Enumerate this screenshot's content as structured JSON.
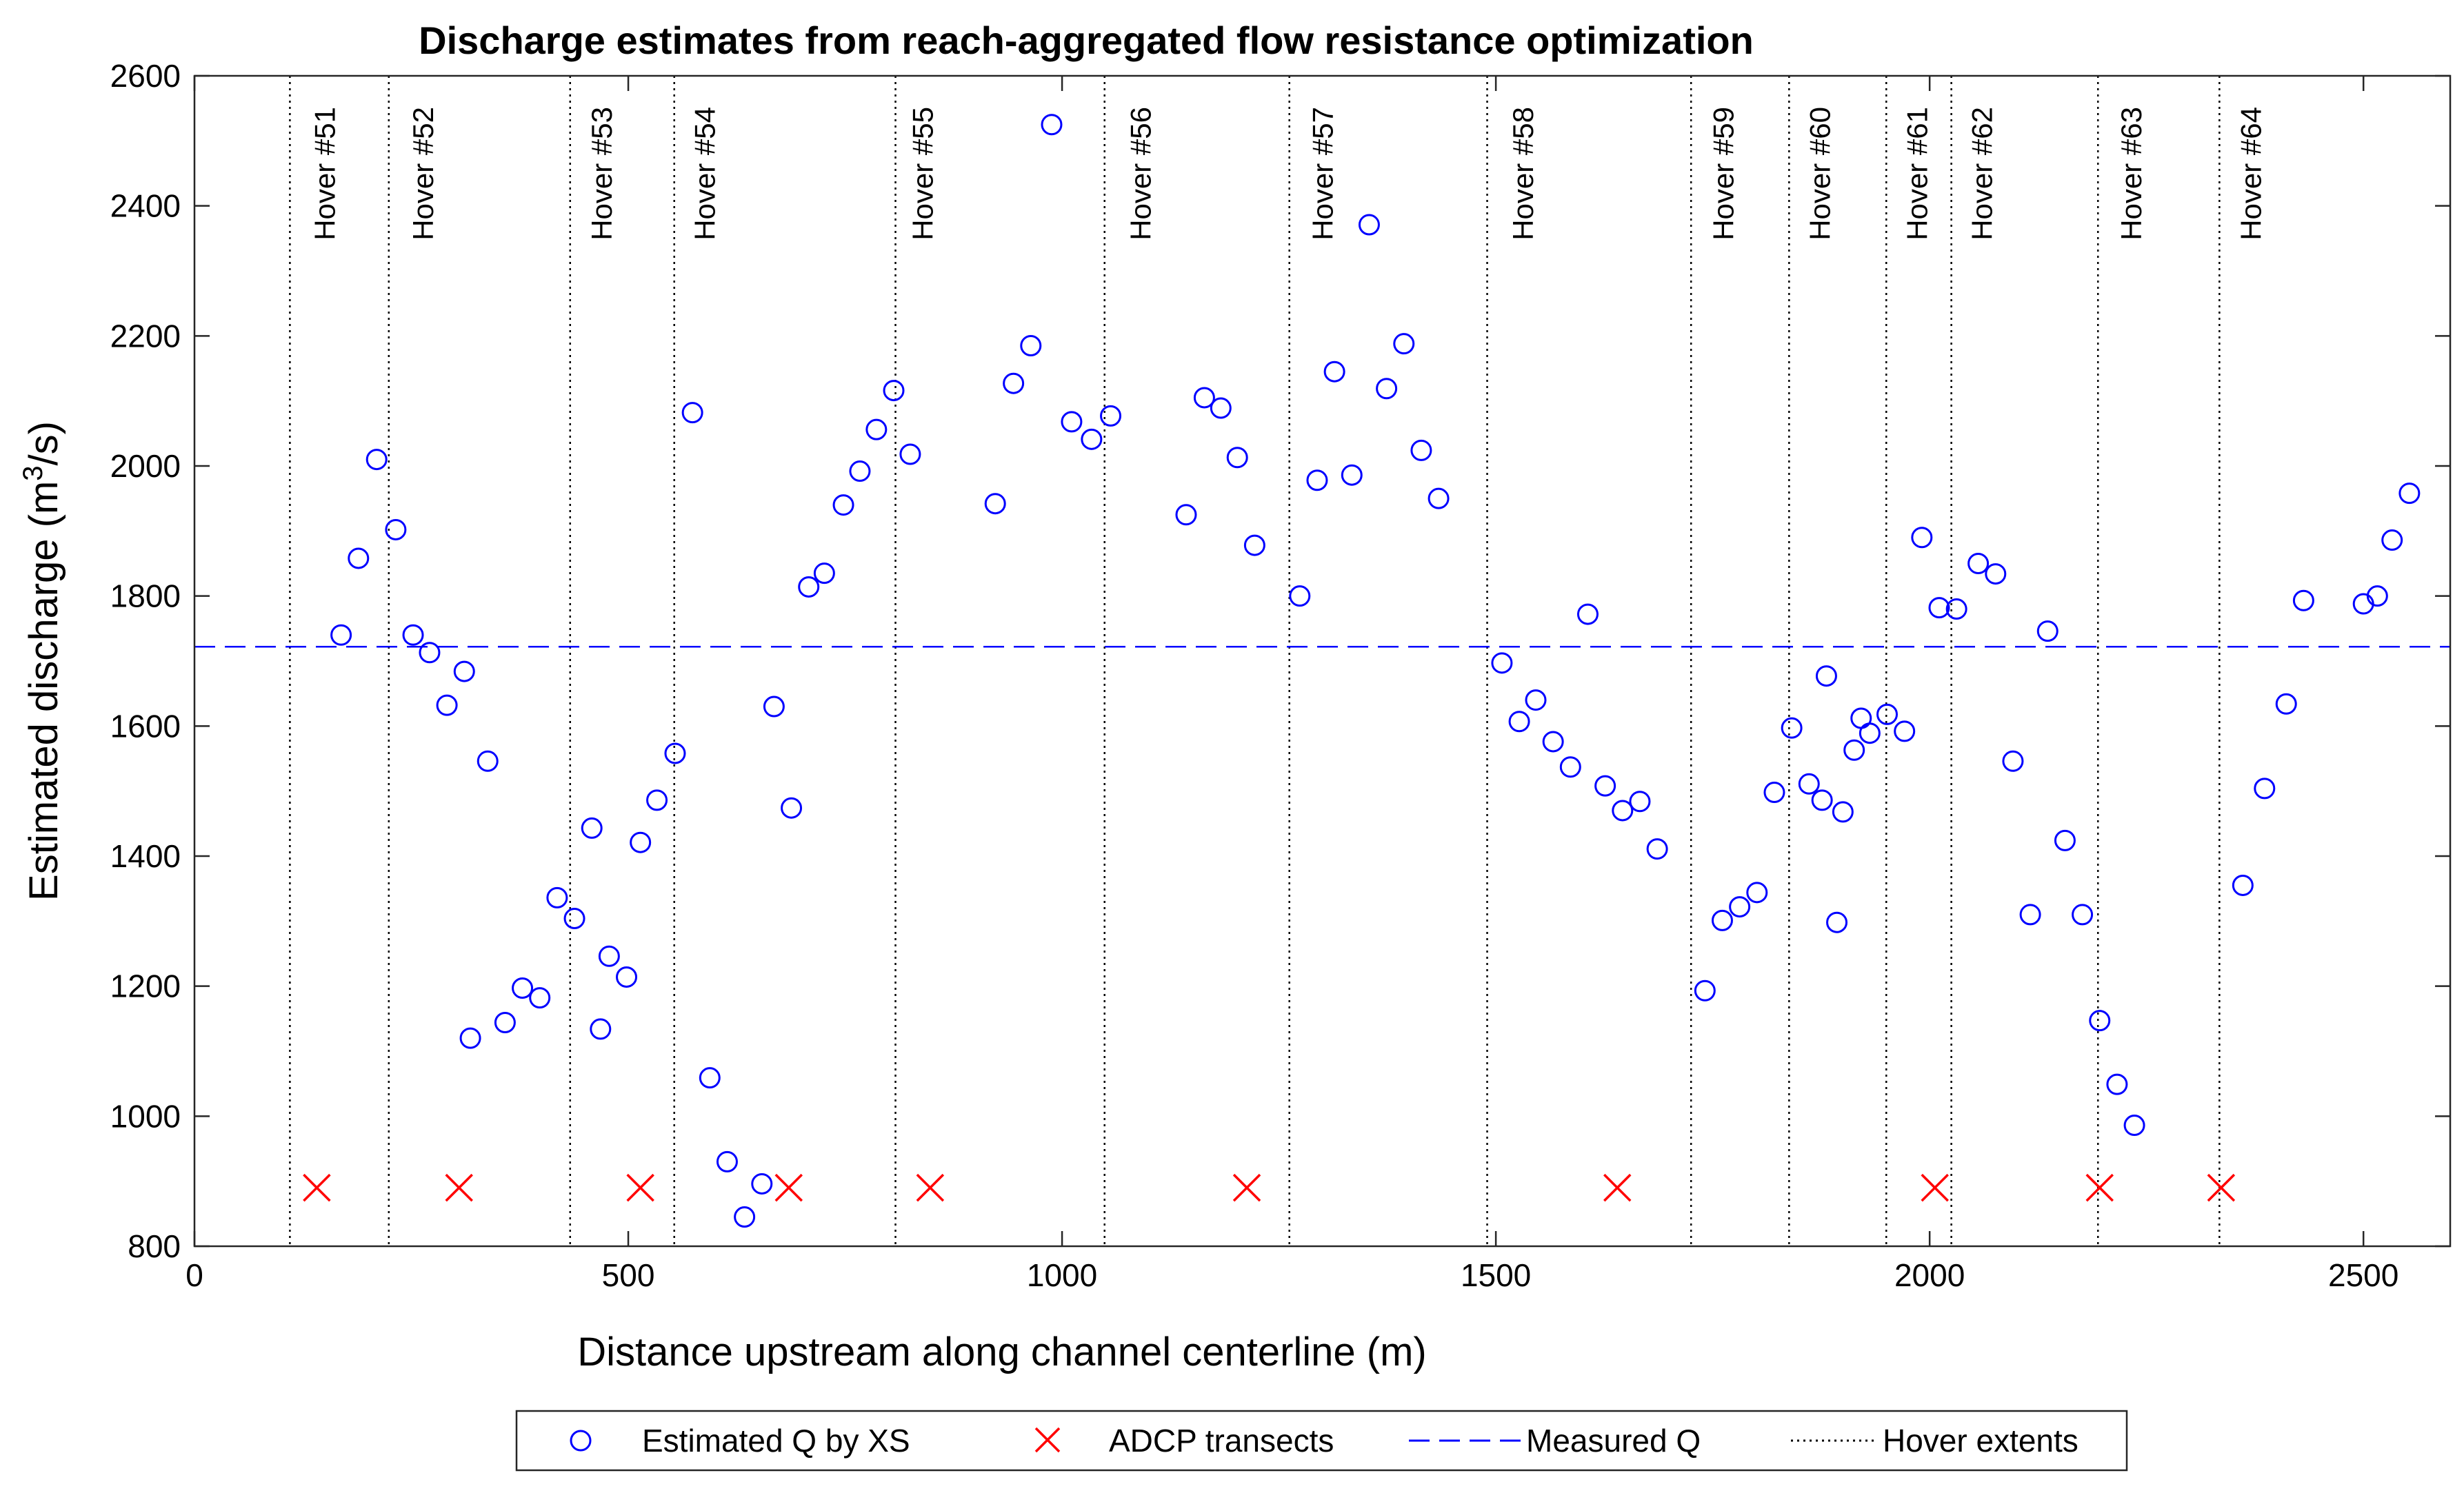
{
  "chart_data": {
    "type": "scatter",
    "title": "Discharge estimates from reach-aggregated flow resistance optimization",
    "xlabel": "Distance upstream along channel centerline (m)",
    "ylabel": "Estimated discharge (m",
    "ylabel_sup": "3",
    "ylabel_end": "/s)",
    "xlim": [
      0,
      2600
    ],
    "ylim": [
      800,
      2600
    ],
    "xticks": [
      0,
      500,
      1000,
      1500,
      2000,
      2500
    ],
    "yticks": [
      800,
      1000,
      1200,
      1400,
      1600,
      1800,
      2000,
      2200,
      2400,
      2600
    ],
    "colors": {
      "estimated": "#0000ff",
      "adcp": "#ff0000",
      "measured": "#0000ff",
      "hover": "#000000"
    },
    "series": [
      {
        "name": "Estimated Q by XS",
        "marker": "circle",
        "points": [
          [
            169,
            1740
          ],
          [
            189,
            1858
          ],
          [
            210,
            2010
          ],
          [
            232,
            1902
          ],
          [
            252,
            1740
          ],
          [
            271,
            1713
          ],
          [
            291,
            1632
          ],
          [
            311,
            1684
          ],
          [
            318,
            1120
          ],
          [
            338,
            1546
          ],
          [
            358,
            1144
          ],
          [
            378,
            1197
          ],
          [
            398,
            1182
          ],
          [
            418,
            1336
          ],
          [
            438,
            1304
          ],
          [
            458,
            1443
          ],
          [
            468,
            1134
          ],
          [
            478,
            1246
          ],
          [
            498,
            1214
          ],
          [
            514,
            1421
          ],
          [
            533,
            1486
          ],
          [
            554,
            1558
          ],
          [
            574,
            2082
          ],
          [
            594,
            1059
          ],
          [
            614,
            930
          ],
          [
            634,
            845
          ],
          [
            654,
            896
          ],
          [
            668,
            1630
          ],
          [
            688,
            1474
          ],
          [
            708,
            1814
          ],
          [
            726,
            1835
          ],
          [
            748,
            1940
          ],
          [
            767,
            1992
          ],
          [
            786,
            2056
          ],
          [
            806,
            2116
          ],
          [
            825,
            2018
          ],
          [
            923,
            1942
          ],
          [
            944,
            2127
          ],
          [
            964,
            2185
          ],
          [
            988,
            2525
          ],
          [
            1011,
            2068
          ],
          [
            1034,
            2041
          ],
          [
            1056,
            2077
          ],
          [
            1143,
            1925
          ],
          [
            1164,
            2105
          ],
          [
            1183,
            2089
          ],
          [
            1202,
            2013
          ],
          [
            1222,
            1878
          ],
          [
            1274,
            1800
          ],
          [
            1294,
            1978
          ],
          [
            1314,
            2145
          ],
          [
            1334,
            1986
          ],
          [
            1354,
            2371
          ],
          [
            1374,
            2119
          ],
          [
            1394,
            2188
          ],
          [
            1414,
            2024
          ],
          [
            1434,
            1950
          ],
          [
            1507,
            1697
          ],
          [
            1527,
            1607
          ],
          [
            1546,
            1640
          ],
          [
            1566,
            1576
          ],
          [
            1586,
            1537
          ],
          [
            1606,
            1772
          ],
          [
            1626,
            1508
          ],
          [
            1646,
            1470
          ],
          [
            1666,
            1484
          ],
          [
            1686,
            1411
          ],
          [
            1741,
            1193
          ],
          [
            1761,
            1301
          ],
          [
            1781,
            1322
          ],
          [
            1801,
            1344
          ],
          [
            1821,
            1498
          ],
          [
            1841,
            1597
          ],
          [
            1861,
            1511
          ],
          [
            1876,
            1486
          ],
          [
            1881,
            1677
          ],
          [
            1893,
            1298
          ],
          [
            1900,
            1468
          ],
          [
            1913,
            1563
          ],
          [
            1921,
            1612
          ],
          [
            1931,
            1589
          ],
          [
            1951,
            1618
          ],
          [
            1971,
            1592
          ],
          [
            1991,
            1890
          ],
          [
            2011,
            1782
          ],
          [
            2031,
            1780
          ],
          [
            2056,
            1850
          ],
          [
            2076,
            1834
          ],
          [
            2096,
            1546
          ],
          [
            2116,
            1310
          ],
          [
            2136,
            1746
          ],
          [
            2156,
            1424
          ],
          [
            2176,
            1310
          ],
          [
            2196,
            1147
          ],
          [
            2216,
            1049
          ],
          [
            2236,
            986
          ],
          [
            2361,
            1355
          ],
          [
            2386,
            1504
          ],
          [
            2411,
            1634
          ],
          [
            2431,
            1793
          ],
          [
            2500,
            1788
          ],
          [
            2516,
            1800
          ],
          [
            2533,
            1886
          ],
          [
            2553,
            1958
          ]
        ]
      },
      {
        "name": "ADCP transects",
        "marker": "x",
        "points": [
          [
            141,
            890
          ],
          [
            305,
            890
          ],
          [
            514,
            890
          ],
          [
            685,
            890
          ],
          [
            848,
            890
          ],
          [
            1213,
            890
          ],
          [
            1640,
            890
          ],
          [
            2006,
            890
          ],
          [
            2196,
            890
          ],
          [
            2336,
            890
          ]
        ]
      },
      {
        "name": "Measured Q",
        "type": "hline",
        "value": 1722
      },
      {
        "name": "Hover extents",
        "type": "vlines",
        "x": [
          110,
          224,
          433,
          553,
          808,
          1049,
          1262,
          1490,
          1725,
          1838,
          1950,
          2025,
          2194,
          2334
        ],
        "labels": [
          "Hover #51",
          "Hover #52",
          "Hover #53",
          "Hover #54",
          "Hover #55",
          "Hover #56",
          "Hover #57",
          "Hover #58",
          "Hover #59",
          "Hover #60",
          "Hover #61",
          "Hover #62",
          "Hover #63",
          "Hover #64"
        ],
        "label_x": [
          150,
          263,
          469,
          588,
          839,
          1090,
          1300,
          1531,
          1762,
          1873,
          1985,
          2060,
          2232,
          2370
        ]
      }
    ],
    "legend": {
      "placement": "bottom-outside",
      "entries": [
        "Estimated Q by XS",
        "ADCP transects",
        "Measured Q",
        "Hover extents"
      ]
    }
  }
}
